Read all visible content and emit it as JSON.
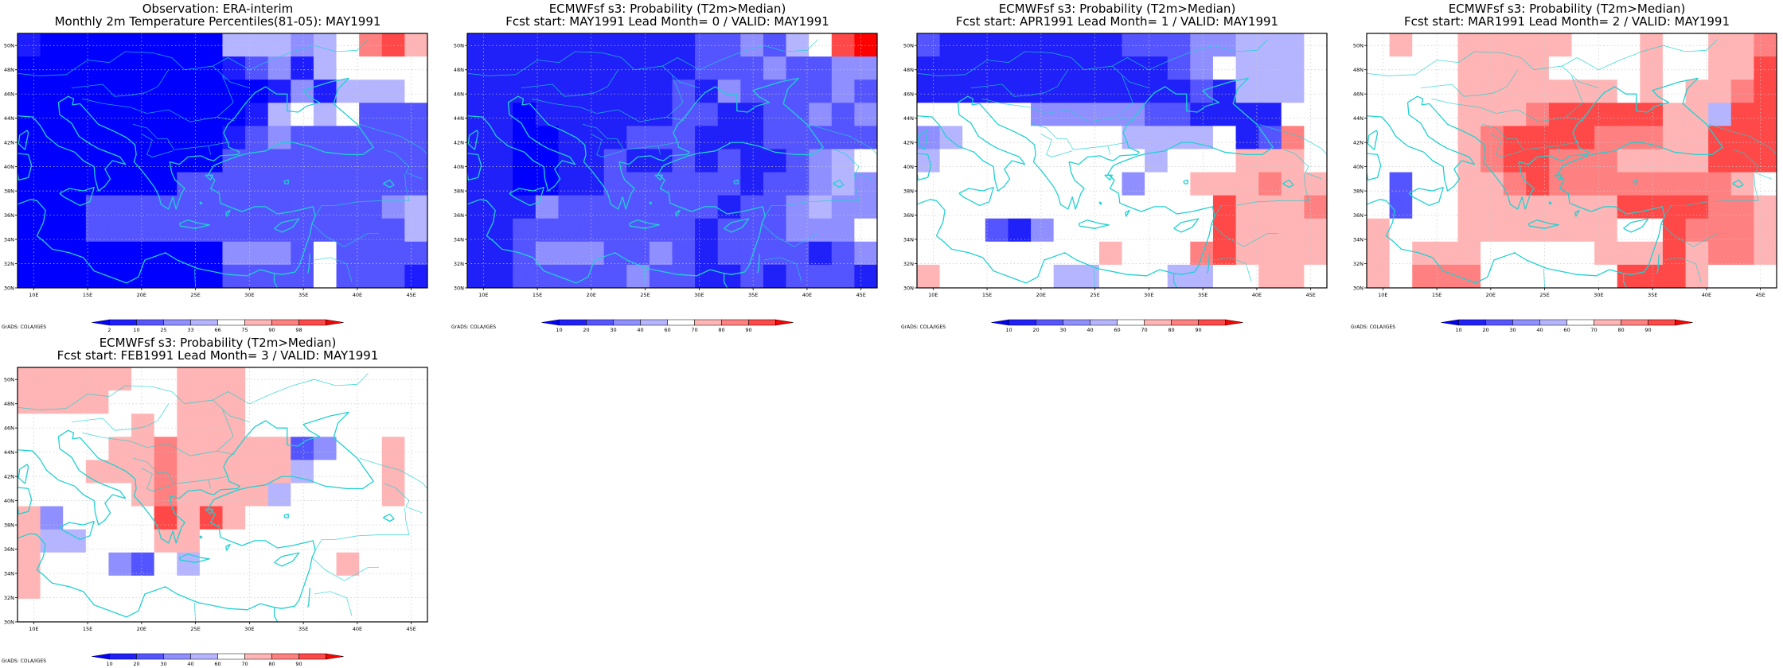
{
  "palette": {
    "probability": [
      "#0000ff",
      "#2020f8",
      "#5555ff",
      "#8f8fff",
      "#b5b5ff",
      "#ffffff",
      "#ffb5b5",
      "#ff8080",
      "#ff4848",
      "#ff0000"
    ],
    "percentile": [
      "#0000ff",
      "#1d1dff",
      "#5555ff",
      "#8f8fff",
      "#b5b5ff",
      "#ffffff",
      "#ffb5b5",
      "#ff8080",
      "#ff4848",
      "#ff0000"
    ],
    "coast": "#21d0d0"
  },
  "panels": [
    {
      "id": "obs",
      "title1": "Observation: ERA-interim",
      "title2": "Monthly 2m Temperature Percentiles(81-05): MAY1991",
      "credit": "GrADS: COLA/IGES",
      "colorbar_labels": [
        "2",
        "10",
        "25",
        "33",
        "66",
        "75",
        "90",
        "98"
      ],
      "scale": "percentile",
      "grid": [
        [
          1,
          0,
          0,
          0,
          0,
          0,
          0,
          0,
          0,
          4,
          4,
          4,
          3,
          4,
          5,
          7,
          8,
          6
        ],
        [
          0,
          0,
          0,
          0,
          0,
          0,
          0,
          0,
          0,
          1,
          2,
          3,
          1,
          4,
          5,
          5,
          5,
          5
        ],
        [
          0,
          0,
          0,
          0,
          0,
          0,
          0,
          0,
          0,
          0,
          0,
          1,
          3,
          1,
          4,
          4,
          4,
          5
        ],
        [
          0,
          0,
          0,
          0,
          0,
          0,
          0,
          0,
          0,
          0,
          1,
          4,
          5,
          4,
          5,
          2,
          2,
          2
        ],
        [
          0,
          0,
          0,
          0,
          0,
          0,
          0,
          0,
          0,
          1,
          2,
          3,
          2,
          2,
          2,
          2,
          2,
          2
        ],
        [
          0,
          0,
          0,
          0,
          0,
          0,
          0,
          0,
          0,
          2,
          2,
          2,
          2,
          2,
          2,
          2,
          2,
          2
        ],
        [
          0,
          0,
          0,
          0,
          0,
          0,
          0,
          2,
          2,
          2,
          2,
          2,
          2,
          2,
          2,
          2,
          2,
          2
        ],
        [
          0,
          0,
          0,
          2,
          2,
          2,
          2,
          2,
          2,
          2,
          2,
          2,
          2,
          2,
          2,
          2,
          3,
          4
        ],
        [
          0,
          0,
          0,
          2,
          2,
          2,
          2,
          2,
          2,
          2,
          2,
          2,
          2,
          2,
          2,
          2,
          2,
          4
        ],
        [
          0,
          0,
          0,
          0,
          0,
          0,
          0,
          0,
          0,
          3,
          3,
          3,
          2,
          5,
          2,
          2,
          2,
          2
        ],
        [
          0,
          0,
          0,
          0,
          0,
          0,
          0,
          0,
          0,
          2,
          2,
          2,
          2,
          5,
          2,
          2,
          2,
          1
        ]
      ]
    },
    {
      "id": "lead0",
      "title1": "ECMWFsf s3: Probability (T2m>Median)",
      "title2": "Fcst start: MAY1991  Lead Month= 0 / VALID: MAY1991",
      "credit": "GrADS: COLA/IGES",
      "colorbar_labels": [
        "10",
        "20",
        "30",
        "40",
        "60",
        "70",
        "80",
        "90"
      ],
      "scale": "probability",
      "grid": [
        [
          1,
          1,
          1,
          1,
          1,
          1,
          1,
          1,
          1,
          1,
          2,
          2,
          3,
          2,
          4,
          5,
          8,
          9
        ],
        [
          1,
          1,
          1,
          1,
          1,
          1,
          1,
          1,
          1,
          1,
          2,
          2,
          2,
          3,
          2,
          2,
          3,
          3
        ],
        [
          1,
          1,
          1,
          1,
          1,
          1,
          1,
          1,
          1,
          2,
          1,
          3,
          2,
          2,
          2,
          2,
          3,
          2
        ],
        [
          1,
          1,
          0,
          1,
          1,
          1,
          1,
          1,
          1,
          2,
          2,
          1,
          1,
          2,
          2,
          3,
          2,
          3
        ],
        [
          1,
          1,
          0,
          0,
          1,
          1,
          1,
          2,
          2,
          2,
          1,
          1,
          1,
          2,
          2,
          2,
          2,
          2
        ],
        [
          1,
          1,
          0,
          0,
          1,
          1,
          2,
          1,
          1,
          2,
          1,
          2,
          1,
          1,
          2,
          3,
          4,
          5
        ],
        [
          1,
          1,
          0,
          0,
          1,
          1,
          2,
          2,
          2,
          2,
          2,
          2,
          1,
          2,
          2,
          3,
          4,
          3
        ],
        [
          1,
          1,
          1,
          3,
          2,
          2,
          2,
          2,
          2,
          2,
          2,
          1,
          2,
          2,
          3,
          4,
          3,
          3
        ],
        [
          1,
          1,
          2,
          2,
          2,
          2,
          2,
          2,
          2,
          2,
          1,
          2,
          2,
          2,
          3,
          3,
          3,
          5
        ],
        [
          1,
          1,
          2,
          3,
          3,
          3,
          2,
          2,
          3,
          2,
          1,
          2,
          2,
          2,
          2,
          1,
          2,
          3
        ],
        [
          1,
          1,
          2,
          2,
          2,
          2,
          2,
          3,
          2,
          2,
          1,
          1,
          2,
          1,
          2,
          2,
          2,
          1
        ]
      ]
    },
    {
      "id": "lead1",
      "title1": "ECMWFsf s3: Probability (T2m>Median)",
      "title2": "Fcst start: APR1991  Lead Month= 1 / VALID: MAY1991",
      "credit": "GrADS: COLA/IGES",
      "colorbar_labels": [
        "10",
        "20",
        "30",
        "40",
        "60",
        "70",
        "80",
        "90"
      ],
      "scale": "probability",
      "grid": [
        [
          2,
          1,
          1,
          1,
          1,
          1,
          1,
          1,
          1,
          2,
          2,
          2,
          3,
          3,
          4,
          4,
          4,
          5
        ],
        [
          1,
          1,
          1,
          1,
          1,
          1,
          1,
          1,
          1,
          1,
          1,
          2,
          3,
          5,
          4,
          4,
          4,
          5
        ],
        [
          1,
          1,
          1,
          1,
          1,
          1,
          1,
          1,
          1,
          1,
          1,
          1,
          2,
          1,
          4,
          4,
          4,
          5
        ],
        [
          5,
          5,
          5,
          5,
          5,
          3,
          3,
          3,
          3,
          3,
          2,
          2,
          1,
          1,
          1,
          1,
          5,
          5
        ],
        [
          3,
          4,
          5,
          5,
          5,
          5,
          5,
          5,
          5,
          4,
          4,
          4,
          4,
          5,
          1,
          2,
          7,
          5
        ],
        [
          4,
          5,
          5,
          5,
          5,
          5,
          5,
          5,
          5,
          5,
          4,
          5,
          5,
          5,
          6,
          6,
          6,
          5
        ],
        [
          5,
          5,
          5,
          5,
          5,
          5,
          5,
          5,
          5,
          3,
          5,
          5,
          6,
          6,
          6,
          7,
          6,
          6
        ],
        [
          5,
          5,
          5,
          5,
          5,
          5,
          5,
          5,
          5,
          5,
          5,
          5,
          5,
          8,
          6,
          6,
          6,
          7
        ],
        [
          5,
          5,
          5,
          2,
          1,
          3,
          5,
          5,
          5,
          5,
          5,
          5,
          5,
          8,
          6,
          6,
          6,
          6
        ],
        [
          5,
          5,
          5,
          5,
          5,
          5,
          5,
          5,
          6,
          5,
          5,
          5,
          7,
          8,
          6,
          6,
          6,
          6
        ],
        [
          6,
          5,
          5,
          5,
          5,
          5,
          4,
          4,
          5,
          5,
          5,
          4,
          4,
          5,
          5,
          6,
          6,
          5
        ]
      ]
    },
    {
      "id": "lead2",
      "title1": "ECMWFsf s3: Probability (T2m>Median)",
      "title2": "Fcst start: MAR1991  Lead Month= 2 / VALID: MAY1991",
      "credit": "GrADS: COLA/IGES",
      "colorbar_labels": [
        "10",
        "20",
        "30",
        "40",
        "60",
        "70",
        "80",
        "90"
      ],
      "scale": "probability",
      "grid": [
        [
          5,
          6,
          5,
          5,
          6,
          6,
          6,
          6,
          6,
          5,
          5,
          5,
          6,
          5,
          5,
          6,
          6,
          7
        ],
        [
          5,
          5,
          5,
          5,
          6,
          6,
          6,
          6,
          5,
          5,
          5,
          5,
          6,
          5,
          5,
          6,
          6,
          8
        ],
        [
          5,
          5,
          5,
          5,
          6,
          6,
          6,
          6,
          6,
          6,
          6,
          5,
          6,
          5,
          6,
          6,
          7,
          8
        ],
        [
          5,
          5,
          5,
          5,
          6,
          6,
          6,
          7,
          8,
          8,
          8,
          8,
          8,
          6,
          6,
          4,
          8,
          8
        ],
        [
          5,
          5,
          5,
          5,
          6,
          7,
          8,
          8,
          8,
          8,
          7,
          7,
          7,
          6,
          6,
          8,
          8,
          8
        ],
        [
          5,
          5,
          5,
          5,
          6,
          7,
          8,
          8,
          7,
          7,
          7,
          6,
          6,
          6,
          6,
          8,
          8,
          8
        ],
        [
          5,
          2,
          5,
          5,
          6,
          6,
          7,
          8,
          7,
          7,
          7,
          7,
          7,
          7,
          7,
          7,
          6,
          5
        ],
        [
          5,
          2,
          5,
          5,
          6,
          6,
          6,
          6,
          6,
          6,
          6,
          8,
          8,
          8,
          8,
          7,
          7,
          6
        ],
        [
          6,
          5,
          5,
          5,
          6,
          6,
          6,
          6,
          6,
          6,
          6,
          5,
          5,
          8,
          7,
          7,
          7,
          6
        ],
        [
          6,
          5,
          6,
          6,
          6,
          5,
          5,
          5,
          5,
          5,
          6,
          6,
          6,
          8,
          6,
          7,
          7,
          6
        ],
        [
          6,
          5,
          7,
          7,
          7,
          5,
          5,
          5,
          5,
          5,
          5,
          8,
          8,
          8,
          6,
          5,
          5,
          5
        ]
      ]
    },
    {
      "id": "lead3",
      "title1": "ECMWFsf s3: Probability (T2m>Median)",
      "title2": "Fcst start: FEB1991  Lead Month= 3 / VALID: MAY1991",
      "credit": "GrADS: COLA/IGES",
      "colorbar_labels": [
        "10",
        "20",
        "30",
        "40",
        "60",
        "70",
        "80",
        "90"
      ],
      "scale": "probability",
      "grid": [
        [
          6,
          6,
          6,
          6,
          6,
          5,
          5,
          6,
          6,
          6,
          5,
          5,
          5,
          5,
          5,
          5,
          5,
          5
        ],
        [
          6,
          6,
          6,
          6,
          5,
          5,
          5,
          6,
          6,
          6,
          5,
          5,
          5,
          5,
          5,
          5,
          5,
          5
        ],
        [
          5,
          5,
          5,
          5,
          5,
          6,
          5,
          6,
          6,
          6,
          5,
          5,
          5,
          5,
          5,
          5,
          5,
          5
        ],
        [
          5,
          5,
          5,
          5,
          6,
          6,
          7,
          6,
          6,
          6,
          6,
          6,
          2,
          3,
          5,
          5,
          6,
          5
        ],
        [
          5,
          5,
          5,
          6,
          6,
          6,
          7,
          6,
          6,
          6,
          6,
          6,
          4,
          5,
          5,
          5,
          6,
          5
        ],
        [
          5,
          5,
          5,
          5,
          5,
          6,
          7,
          6,
          6,
          6,
          6,
          4,
          5,
          5,
          5,
          5,
          6,
          5
        ],
        [
          6,
          3,
          5,
          5,
          5,
          5,
          8,
          6,
          8,
          6,
          5,
          5,
          5,
          5,
          5,
          5,
          5,
          5
        ],
        [
          6,
          4,
          4,
          5,
          5,
          5,
          6,
          6,
          5,
          5,
          5,
          5,
          5,
          5,
          5,
          5,
          5,
          5
        ],
        [
          6,
          5,
          5,
          5,
          3,
          2,
          5,
          4,
          5,
          5,
          5,
          5,
          5,
          5,
          6,
          5,
          5,
          5
        ],
        [
          6,
          5,
          5,
          5,
          5,
          5,
          5,
          5,
          5,
          5,
          5,
          5,
          5,
          5,
          5,
          5,
          5,
          5
        ],
        [
          5,
          5,
          5,
          5,
          5,
          5,
          5,
          5,
          5,
          5,
          5,
          5,
          5,
          5,
          5,
          5,
          5,
          5
        ]
      ]
    }
  ],
  "axes": {
    "lon_labels": [
      "10E",
      "15E",
      "20E",
      "25E",
      "30E",
      "35E",
      "40E",
      "45E"
    ],
    "lat_labels": [
      "50N",
      "48N",
      "46N",
      "44N",
      "42N",
      "40N",
      "38N",
      "36N",
      "34N",
      "32N",
      "30N"
    ],
    "lon_range": [
      8.5,
      46.5
    ],
    "lat_range": [
      30,
      51
    ]
  }
}
